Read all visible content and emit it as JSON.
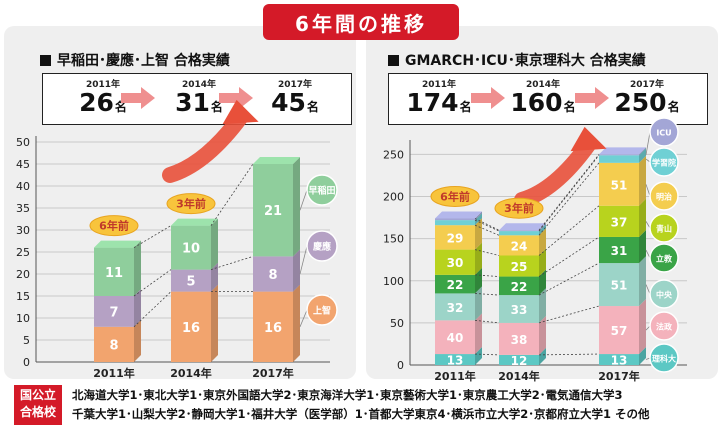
{
  "header": {
    "title": "6年間の推移"
  },
  "left": {
    "title": "早稲田･慶應･上智 合格実績",
    "summary": [
      {
        "year": "2011年",
        "value": "26",
        "unit": "名"
      },
      {
        "year": "2014年",
        "value": "31",
        "unit": "名"
      },
      {
        "year": "2017年",
        "value": "45",
        "unit": "名"
      }
    ],
    "badges": [
      "6年前",
      "3年前"
    ]
  },
  "right": {
    "title": "GMARCH･ICU･東京理科大 合格実績",
    "summary": [
      {
        "year": "2011年",
        "value": "174",
        "unit": "名"
      },
      {
        "year": "2014年",
        "value": "160",
        "unit": "名"
      },
      {
        "year": "2017年",
        "value": "250",
        "unit": "名"
      }
    ],
    "badges": [
      "6年前",
      "3年前"
    ]
  },
  "colors": {
    "red": "#d41a28",
    "orange": "#f2a46e",
    "purple": "#b5a1c4",
    "green": "#8fce9c",
    "teal": "#5cc8c4",
    "pink": "#f4b2bc",
    "mint": "#9cd4c8",
    "darkgreen": "#3aa447",
    "lime": "#b8d31e",
    "yellow": "#f4cd4f",
    "lightteal": "#6fd0d4",
    "lavender": "#a3a6d6",
    "badge": "#f8c43c"
  },
  "chart_data": [
    {
      "type": "bar",
      "stacked": true,
      "categories": [
        "2011年",
        "2014年",
        "2017年"
      ],
      "series": [
        {
          "name": "上智",
          "values": [
            8,
            16,
            16
          ],
          "color": "#f2a46e"
        },
        {
          "name": "慶應",
          "values": [
            7,
            5,
            8
          ],
          "color": "#b5a1c4"
        },
        {
          "name": "早稲田",
          "values": [
            11,
            10,
            21
          ],
          "color": "#8fce9c"
        }
      ],
      "ylim": [
        0,
        50
      ],
      "yticks": [
        0,
        5,
        10,
        15,
        20,
        25,
        30,
        35,
        40,
        45,
        50
      ],
      "grid": true,
      "legend": "right"
    },
    {
      "type": "bar",
      "stacked": true,
      "categories": [
        "2011年",
        "2014年",
        "2017年"
      ],
      "series": [
        {
          "name": "理科大",
          "values": [
            13,
            12,
            13
          ],
          "color": "#5cc8c4"
        },
        {
          "name": "法政",
          "values": [
            40,
            38,
            57
          ],
          "color": "#f4b2bc"
        },
        {
          "name": "中央",
          "values": [
            32,
            33,
            51
          ],
          "color": "#9cd4c8"
        },
        {
          "name": "立教",
          "values": [
            22,
            22,
            31
          ],
          "color": "#3aa447"
        },
        {
          "name": "青山",
          "values": [
            30,
            25,
            37
          ],
          "color": "#b8d31e"
        },
        {
          "name": "明治",
          "values": [
            29,
            24,
            51
          ],
          "color": "#f4cd4f"
        },
        {
          "name": "学習院",
          "values": [
            6,
            5,
            9
          ],
          "color": "#6fd0d4"
        },
        {
          "name": "ICU",
          "values": [
            2,
            1,
            1
          ],
          "color": "#a3a6d6"
        }
      ],
      "ylim": [
        0,
        260
      ],
      "yticks": [
        0,
        50,
        100,
        150,
        200,
        250
      ],
      "grid": true,
      "legend": "right"
    }
  ],
  "footer": {
    "label_line1": "国公立",
    "label_line2": "合格校",
    "line1": "北海道大学1･東北大学1･東京外国語大学2･東京海洋大学1･東京藝術大学1･東京農工大学2･電気通信大学3",
    "line2": "千葉大学1･山梨大学2･静岡大学1･福井大学（医学部）1･首都大学東京4･横浜市立大学2･京都府立大学1 その他"
  }
}
